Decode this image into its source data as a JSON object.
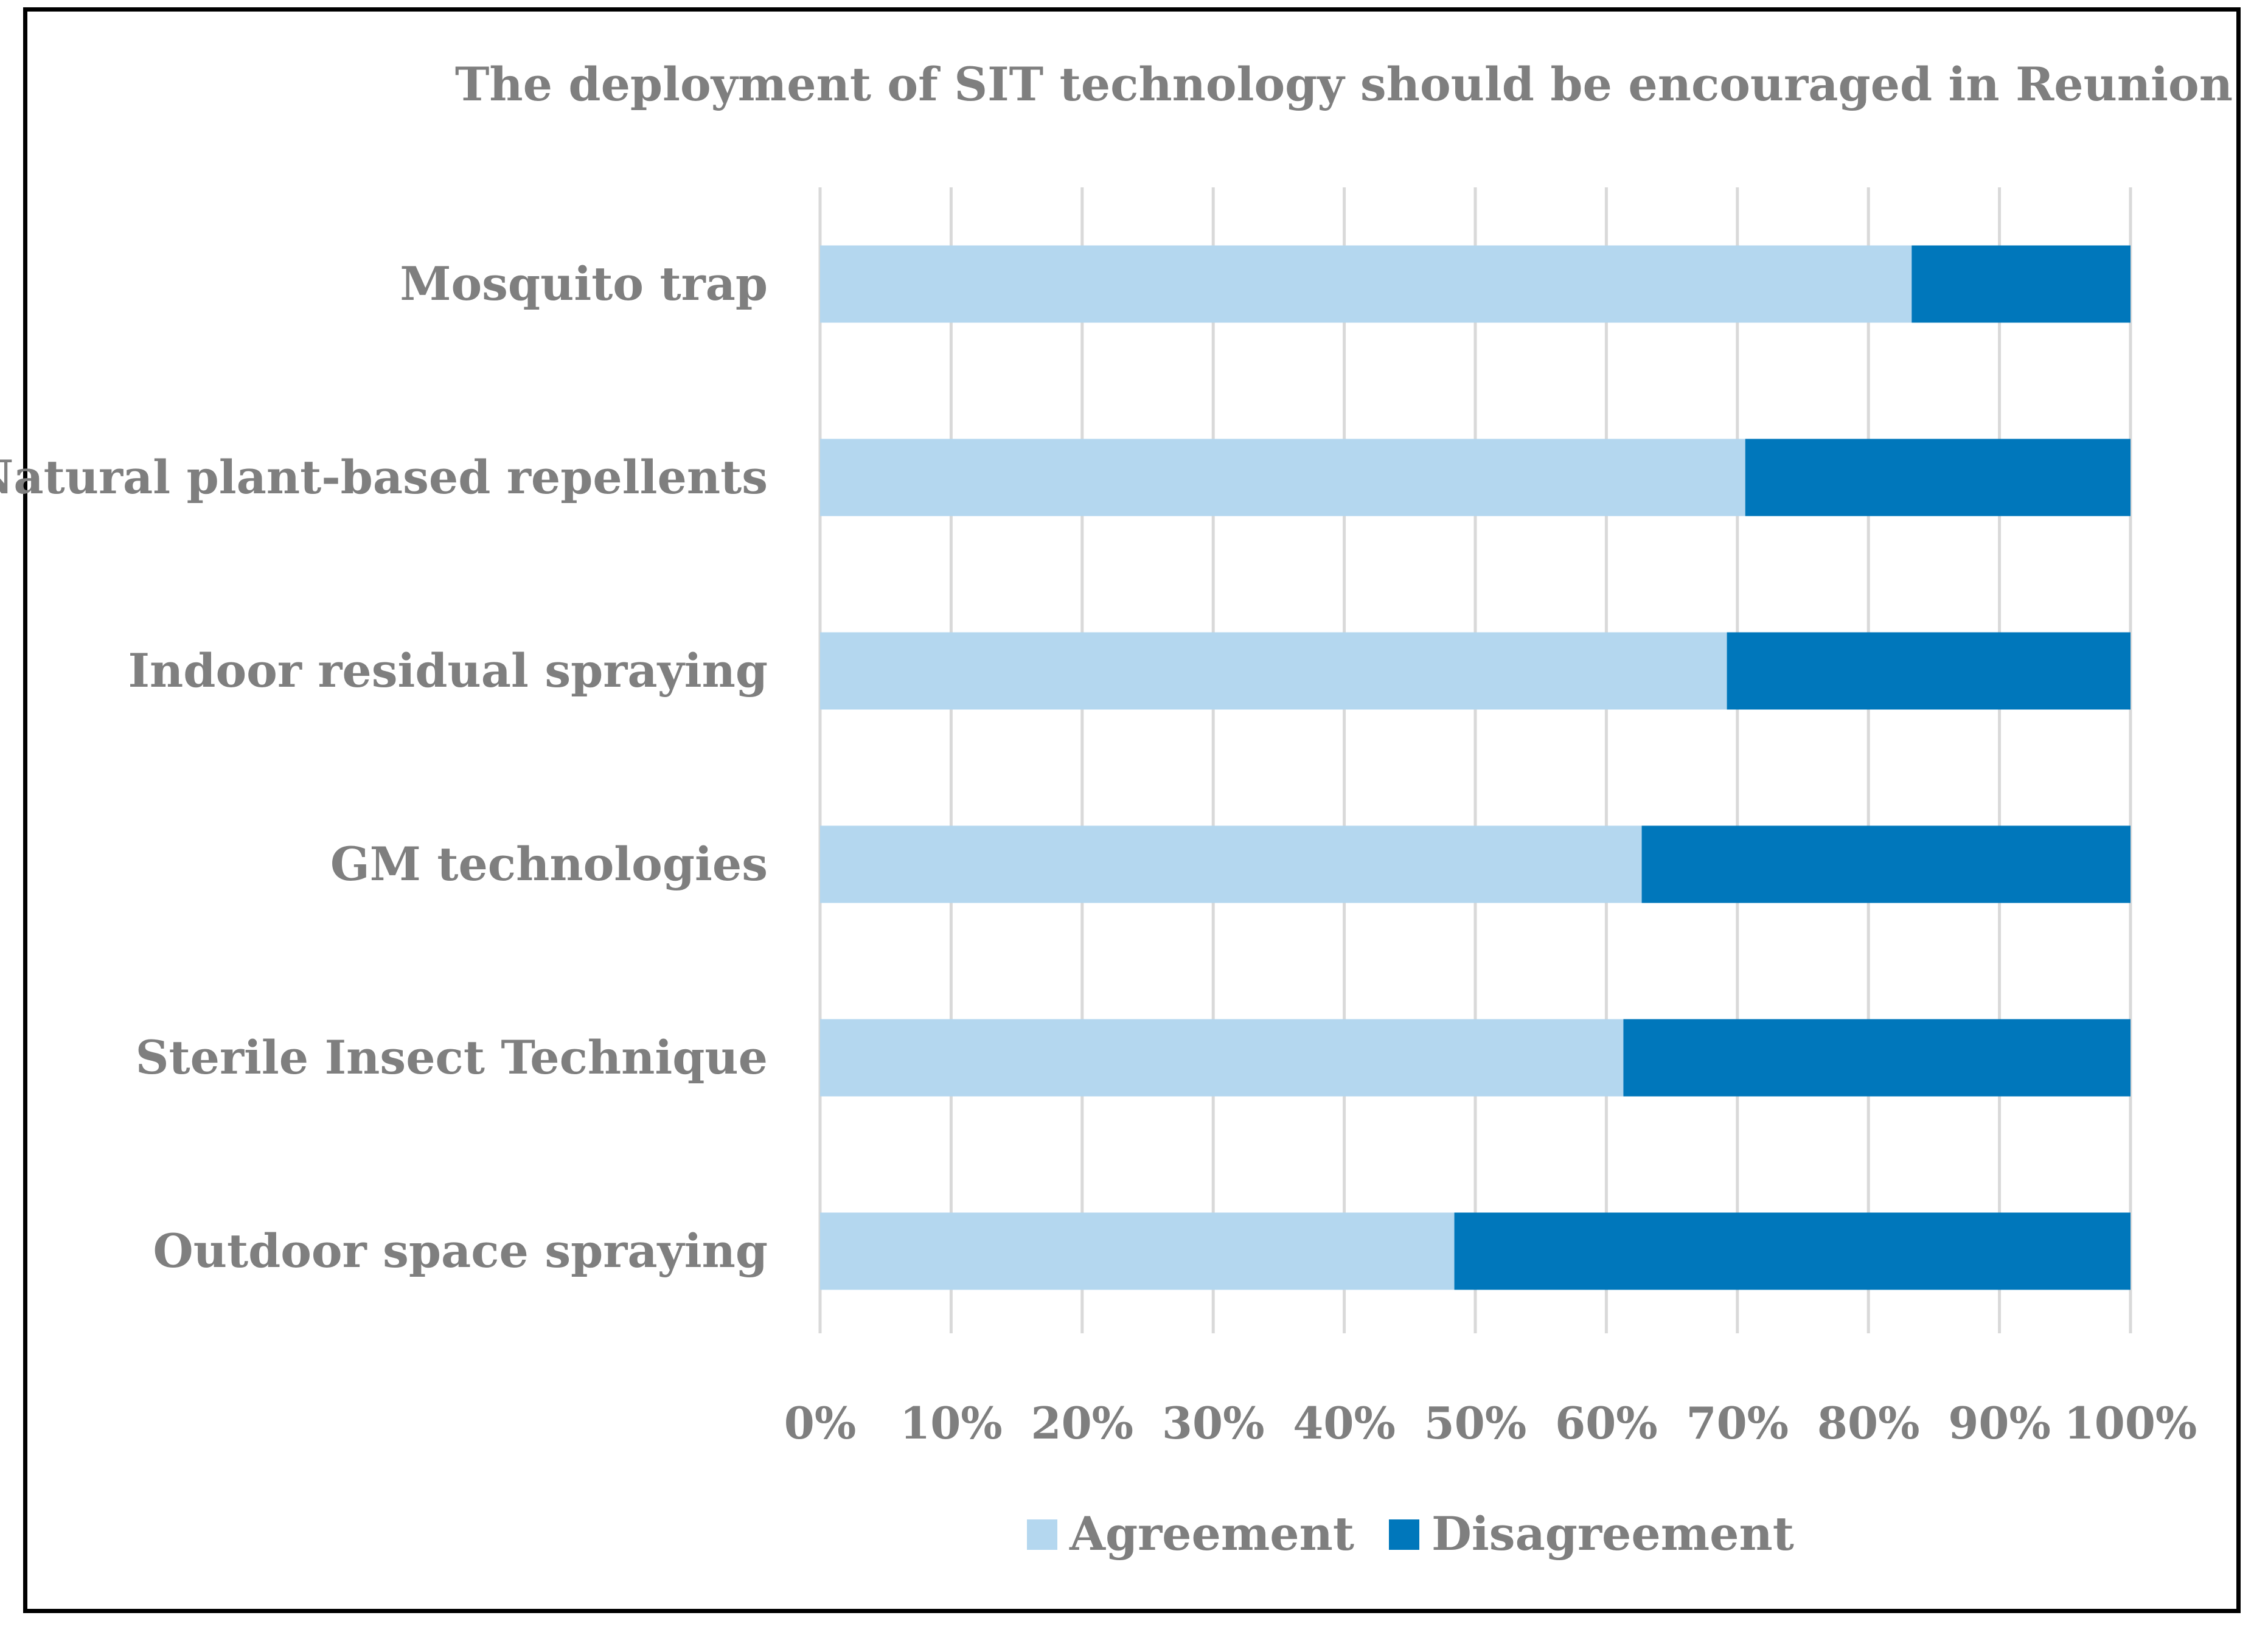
{
  "chart_data": {
    "type": "bar",
    "orientation": "horizontal",
    "stacked": "percent",
    "title": "The deployment of SIT technology should be encouraged in Reunion",
    "categories": [
      "Mosquito trap",
      "Natural plant-based repellents",
      "Indoor residual spraying",
      "GM technologies",
      "Sterile Insect Technique",
      "Outdoor space spraying"
    ],
    "series": [
      {
        "name": "Agreement",
        "color": "#b4d7ef",
        "values": [
          83.3,
          70.6,
          69.2,
          62.7,
          61.3,
          48.4
        ]
      },
      {
        "name": "Disagreement",
        "color": "#0077bb",
        "values": [
          16.7,
          29.4,
          30.8,
          37.3,
          38.7,
          51.6
        ]
      }
    ],
    "xlim": [
      0,
      100
    ],
    "x_ticks": [
      "0%",
      "10%",
      "20%",
      "30%",
      "40%",
      "50%",
      "60%",
      "70%",
      "80%",
      "90%",
      "100%"
    ],
    "grid": true,
    "legend": "bottom",
    "grid_color": "#d9d9d9",
    "text_color": "#7f7f7f"
  }
}
